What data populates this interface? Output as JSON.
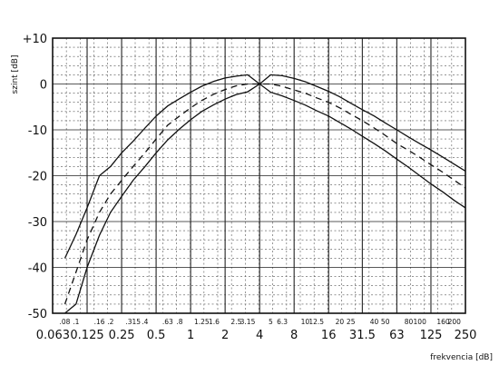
{
  "chart_data": {
    "type": "line",
    "title": "",
    "ylabel": "szint [dB]",
    "xlabel": "frekvencia [dB]",
    "x_scale": "log",
    "ylim": [
      -50,
      10
    ],
    "ytick_labels": [
      "+10",
      "0",
      "-10",
      "-20",
      "-30",
      "-40",
      "-50"
    ],
    "ytick_values": [
      10,
      0,
      -10,
      -20,
      -30,
      -40,
      -50
    ],
    "xticks_small": [
      {
        "x": 0.08,
        "label": ".08"
      },
      {
        "x": 0.1,
        "label": ".1"
      },
      {
        "x": 0.16,
        "label": ".16"
      },
      {
        "x": 0.2,
        "label": ".2"
      },
      {
        "x": 0.315,
        "label": ".315"
      },
      {
        "x": 0.4,
        "label": ".4"
      },
      {
        "x": 0.63,
        "label": ".63"
      },
      {
        "x": 0.8,
        "label": ".8"
      },
      {
        "x": 1.25,
        "label": "1.25"
      },
      {
        "x": 1.6,
        "label": "1.6"
      },
      {
        "x": 2.5,
        "label": "2.5"
      },
      {
        "x": 3.15,
        "label": "3.15"
      },
      {
        "x": 5,
        "label": "5"
      },
      {
        "x": 6.3,
        "label": "6.3"
      },
      {
        "x": 10,
        "label": "10"
      },
      {
        "x": 12.5,
        "label": "12.5"
      },
      {
        "x": 20,
        "label": "20"
      },
      {
        "x": 25,
        "label": "25"
      },
      {
        "x": 40,
        "label": "40"
      },
      {
        "x": 50,
        "label": "50"
      },
      {
        "x": 80,
        "label": "80"
      },
      {
        "x": 100,
        "label": "100"
      },
      {
        "x": 160,
        "label": "160"
      },
      {
        "x": 200,
        "label": "200"
      }
    ],
    "xticks_big": [
      {
        "x": 0.063,
        "label": "0.063"
      },
      {
        "x": 0.125,
        "label": "0.125"
      },
      {
        "x": 0.25,
        "label": "0.25"
      },
      {
        "x": 0.5,
        "label": "0.5"
      },
      {
        "x": 1,
        "label": "1"
      },
      {
        "x": 2,
        "label": "2"
      },
      {
        "x": 4,
        "label": "4"
      },
      {
        "x": 8,
        "label": "8"
      },
      {
        "x": 16,
        "label": "16"
      },
      {
        "x": 31.5,
        "label": "31.5"
      },
      {
        "x": 63,
        "label": "63"
      },
      {
        "x": 125,
        "label": "125"
      },
      {
        "x": 250,
        "label": "250"
      }
    ],
    "grid": true,
    "series": [
      {
        "style": "solid",
        "points": [
          [
            0.08,
            -38
          ],
          [
            0.1,
            -32.8
          ],
          [
            0.125,
            -27
          ],
          [
            0.16,
            -20
          ],
          [
            0.2,
            -18
          ],
          [
            0.25,
            -15
          ],
          [
            0.315,
            -12.5
          ],
          [
            0.4,
            -9.6
          ],
          [
            0.5,
            -7
          ],
          [
            0.63,
            -4.8
          ],
          [
            0.8,
            -3.2
          ],
          [
            1,
            -1.8
          ],
          [
            1.25,
            -0.5
          ],
          [
            1.6,
            0.6
          ],
          [
            2,
            1.3
          ],
          [
            2.5,
            1.7
          ],
          [
            3.15,
            2
          ],
          [
            4,
            0
          ],
          [
            5,
            2
          ],
          [
            6.3,
            1.8
          ],
          [
            8,
            1.2
          ],
          [
            10,
            0.5
          ],
          [
            12.5,
            -0.5
          ],
          [
            16,
            -1.6
          ],
          [
            20,
            -2.8
          ],
          [
            25,
            -4.2
          ],
          [
            31.5,
            -5.6
          ],
          [
            40,
            -7
          ],
          [
            50,
            -8.5
          ],
          [
            63,
            -10
          ],
          [
            80,
            -11.6
          ],
          [
            100,
            -13
          ],
          [
            125,
            -14.4
          ],
          [
            160,
            -16
          ],
          [
            200,
            -17.5
          ],
          [
            250,
            -19
          ]
        ]
      },
      {
        "style": "dashed",
        "points": [
          [
            0.08,
            -48
          ],
          [
            0.1,
            -41
          ],
          [
            0.125,
            -34
          ],
          [
            0.16,
            -28
          ],
          [
            0.2,
            -24
          ],
          [
            0.25,
            -21
          ],
          [
            0.315,
            -18
          ],
          [
            0.4,
            -15
          ],
          [
            0.5,
            -12
          ],
          [
            0.63,
            -9
          ],
          [
            0.8,
            -7
          ],
          [
            1,
            -5.2
          ],
          [
            1.25,
            -3.6
          ],
          [
            1.6,
            -2.2
          ],
          [
            2,
            -1.2
          ],
          [
            2.5,
            -0.4
          ],
          [
            3.15,
            0
          ],
          [
            4,
            0
          ],
          [
            5,
            0
          ],
          [
            6.3,
            -0.5
          ],
          [
            8,
            -1.3
          ],
          [
            10,
            -2
          ],
          [
            12.5,
            -3
          ],
          [
            16,
            -4
          ],
          [
            20,
            -5.2
          ],
          [
            25,
            -6.6
          ],
          [
            31.5,
            -8
          ],
          [
            40,
            -9.6
          ],
          [
            50,
            -11.2
          ],
          [
            63,
            -13
          ],
          [
            80,
            -14.5
          ],
          [
            100,
            -16
          ],
          [
            125,
            -17.6
          ],
          [
            160,
            -19.3
          ],
          [
            200,
            -21
          ],
          [
            250,
            -22.7
          ]
        ]
      },
      {
        "style": "solid",
        "points": [
          [
            0.08,
            -50
          ],
          [
            0.1,
            -48
          ],
          [
            0.125,
            -40
          ],
          [
            0.16,
            -33
          ],
          [
            0.2,
            -28
          ],
          [
            0.25,
            -24.5
          ],
          [
            0.315,
            -21
          ],
          [
            0.4,
            -18
          ],
          [
            0.5,
            -15
          ],
          [
            0.63,
            -12.2
          ],
          [
            0.8,
            -9.8
          ],
          [
            1,
            -7.8
          ],
          [
            1.25,
            -6
          ],
          [
            1.6,
            -4.5
          ],
          [
            2,
            -3.3
          ],
          [
            2.5,
            -2.3
          ],
          [
            3.15,
            -1.7
          ],
          [
            4,
            0
          ],
          [
            5,
            -1.8
          ],
          [
            6.3,
            -2.6
          ],
          [
            8,
            -3.6
          ],
          [
            10,
            -4.6
          ],
          [
            12.5,
            -5.8
          ],
          [
            16,
            -7
          ],
          [
            20,
            -8.4
          ],
          [
            25,
            -9.8
          ],
          [
            31.5,
            -11.4
          ],
          [
            40,
            -13
          ],
          [
            50,
            -14.6
          ],
          [
            63,
            -16.4
          ],
          [
            80,
            -18.2
          ],
          [
            100,
            -20
          ],
          [
            125,
            -21.8
          ],
          [
            160,
            -23.6
          ],
          [
            200,
            -25.4
          ],
          [
            250,
            -27
          ]
        ]
      }
    ]
  }
}
